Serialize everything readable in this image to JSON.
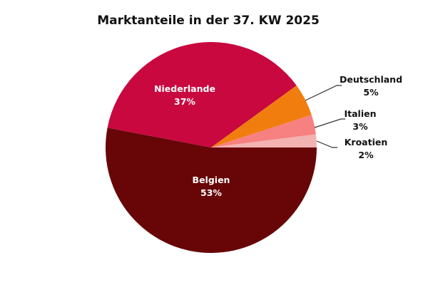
{
  "chart_data": {
    "type": "pie",
    "title": "Marktanteile in der 37. KW 2025",
    "slices": [
      {
        "label": "Belgien",
        "value": 53,
        "value_label": "53%",
        "color": "#680507",
        "label_color": "#ffffff"
      },
      {
        "label": "Niederlande",
        "value": 37,
        "value_label": "37%",
        "color": "#c8083f",
        "label_color": "#ffffff"
      },
      {
        "label": "Deutschland",
        "value": 5,
        "value_label": "5%",
        "color": "#f07d0e",
        "label_color": "#111111"
      },
      {
        "label": "Italien",
        "value": 3,
        "value_label": "3%",
        "color": "#f78080",
        "label_color": "#111111"
      },
      {
        "label": "Kroatien",
        "value": 2,
        "value_label": "2%",
        "color": "#f2b2b2",
        "label_color": "#111111"
      }
    ]
  }
}
